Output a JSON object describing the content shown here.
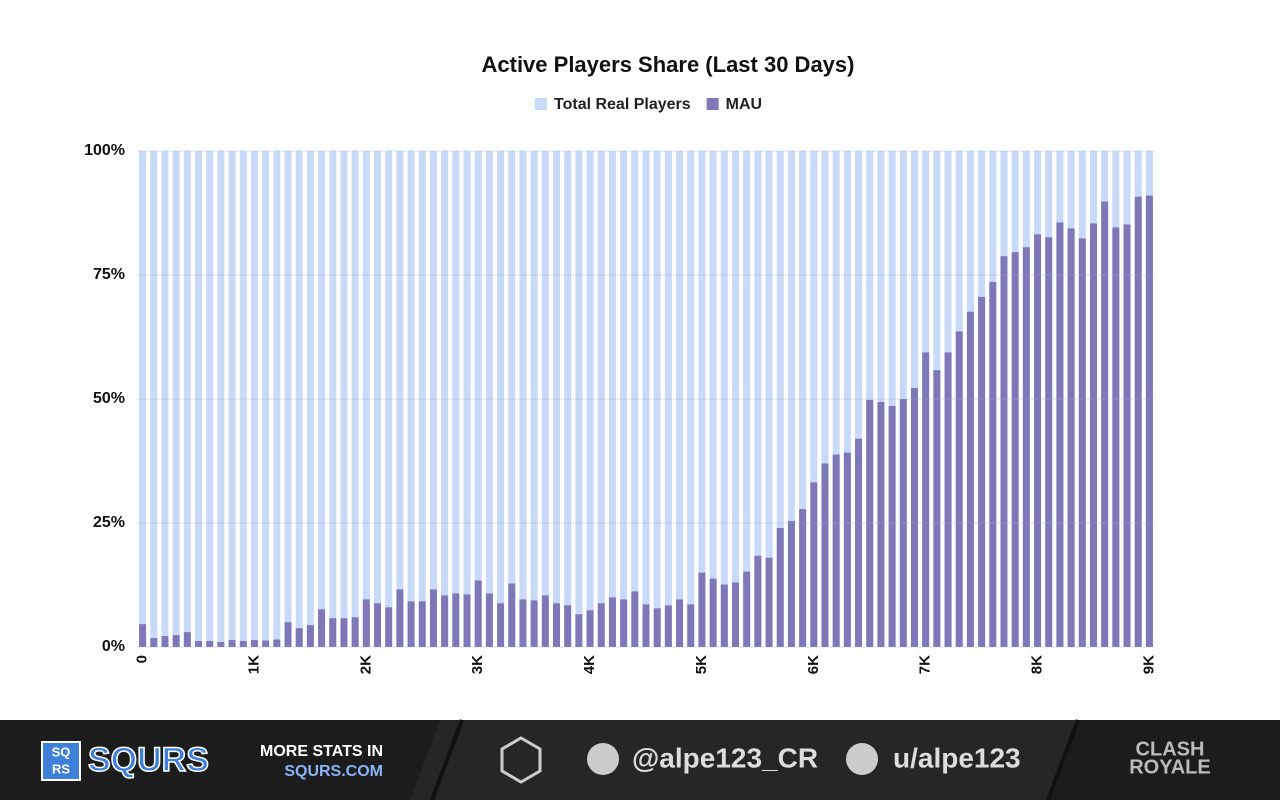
{
  "chart_data": {
    "type": "bar",
    "title": "Active Players Share (Last 30 Days)",
    "categories": [
      "0",
      null,
      null,
      null,
      null,
      null,
      null,
      null,
      null,
      null,
      "1K",
      null,
      null,
      null,
      null,
      null,
      null,
      null,
      null,
      null,
      "2K",
      null,
      null,
      null,
      null,
      null,
      null,
      null,
      null,
      null,
      "3K",
      null,
      null,
      null,
      null,
      null,
      null,
      null,
      null,
      null,
      "4K",
      null,
      null,
      null,
      null,
      null,
      null,
      null,
      null,
      null,
      "5K",
      null,
      null,
      null,
      null,
      null,
      null,
      null,
      null,
      null,
      "6K",
      null,
      null,
      null,
      null,
      null,
      null,
      null,
      null,
      null,
      "7K",
      null,
      null,
      null,
      null,
      null,
      null,
      null,
      null,
      null,
      "8K",
      null,
      null,
      null,
      null,
      null,
      null,
      null,
      null,
      null,
      "9K"
    ],
    "series": [
      {
        "name": "Total Real Players",
        "color": "#c9daf8",
        "values": [
          100,
          100,
          100,
          100,
          100,
          100,
          100,
          100,
          100,
          100,
          100,
          100,
          100,
          100,
          100,
          100,
          100,
          100,
          100,
          100,
          100,
          100,
          100,
          100,
          100,
          100,
          100,
          100,
          100,
          100,
          100,
          100,
          100,
          100,
          100,
          100,
          100,
          100,
          100,
          100,
          100,
          100,
          100,
          100,
          100,
          100,
          100,
          100,
          100,
          100,
          100,
          100,
          100,
          100,
          100,
          100,
          100,
          100,
          100,
          100,
          100,
          100,
          100,
          100,
          100,
          100,
          100,
          100,
          100,
          100,
          100,
          100,
          100,
          100,
          100,
          100,
          100,
          100,
          100,
          100,
          100,
          100,
          100,
          100,
          100,
          100,
          100,
          100,
          100,
          100,
          100
        ]
      },
      {
        "name": "MAU",
        "color": "#7e78b8",
        "values": [
          4.6,
          1.8,
          2.2,
          2.4,
          3.0,
          1.2,
          1.2,
          1.0,
          1.4,
          1.2,
          1.4,
          1.3,
          1.5,
          5.0,
          3.8,
          4.4,
          7.6,
          5.8,
          5.8,
          6.0,
          9.6,
          8.8,
          8.0,
          11.6,
          9.2,
          9.2,
          11.6,
          10.4,
          10.8,
          10.6,
          13.4,
          10.8,
          8.8,
          12.8,
          9.6,
          9.4,
          10.4,
          8.8,
          8.4,
          6.6,
          7.4,
          8.8,
          10.0,
          9.6,
          11.2,
          8.6,
          7.8,
          8.4,
          9.6,
          8.6,
          15.0,
          13.8,
          12.6,
          13.0,
          15.2,
          18.4,
          18.0,
          24.0,
          25.4,
          27.8,
          33.2,
          37.0,
          38.8,
          39.2,
          42.0,
          49.8,
          49.4,
          48.6,
          50.0,
          52.2,
          59.4,
          55.8,
          59.4,
          63.6,
          67.6,
          70.6,
          73.6,
          78.8,
          79.6,
          80.6,
          83.2,
          82.6,
          85.6,
          84.4,
          82.4,
          85.4,
          89.8,
          84.6,
          85.2,
          90.8,
          91.0
        ]
      }
    ],
    "ylim": [
      0,
      100
    ],
    "yticks": [
      {
        "value": 0,
        "label": "0%"
      },
      {
        "value": 25,
        "label": "25%"
      },
      {
        "value": 50,
        "label": "50%"
      },
      {
        "value": 75,
        "label": "75%"
      },
      {
        "value": 100,
        "label": "100%"
      }
    ],
    "grid": true
  },
  "footer": {
    "brand": "SQURS",
    "logo_top": "SQ",
    "logo_bottom": "RS",
    "more": "MORE STATS IN",
    "site": "SQURS.COM",
    "twitter": "@alpe123_CR",
    "reddit": "u/alpe123",
    "game_top": "CLASH",
    "game_bottom": "ROYALE"
  }
}
